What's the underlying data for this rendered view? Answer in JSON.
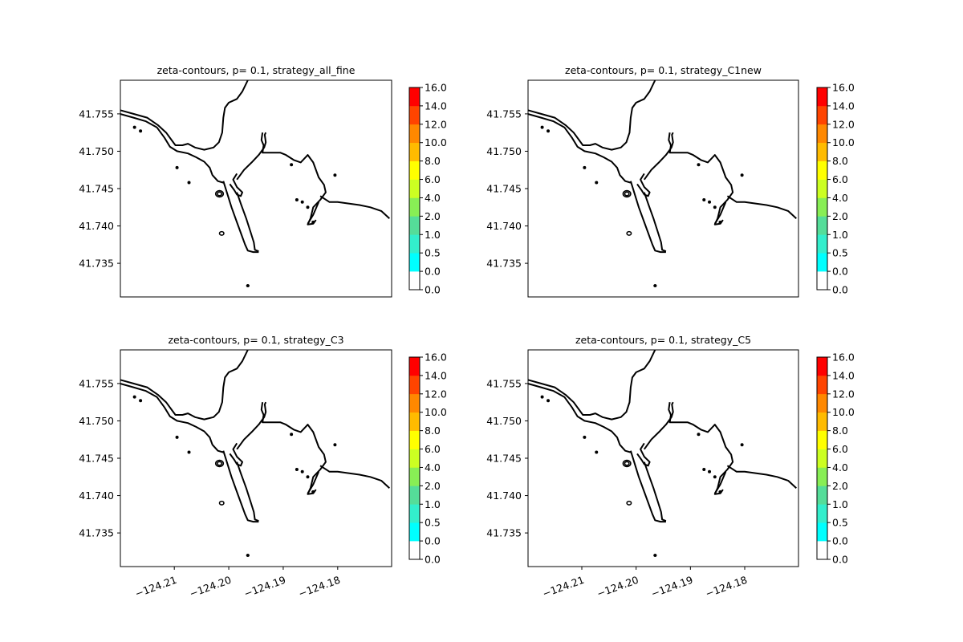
{
  "chart_data": {
    "type": "contour",
    "subplots": [
      {
        "title": "zeta-contours, p= 0.1, strategy_all_fine"
      },
      {
        "title": "zeta-contours, p= 0.1, strategy_C1new"
      },
      {
        "title": "zeta-contours, p= 0.1, strategy_C3"
      },
      {
        "title": "zeta-contours, p= 0.1, strategy_C5"
      }
    ],
    "xlim": [
      -124.2199,
      -124.1701
    ],
    "ylim": [
      41.7305,
      41.7595
    ],
    "x_ticks": [
      -124.21,
      -124.2,
      -124.19,
      -124.18
    ],
    "x_tick_labels": [
      "−124.21",
      "−124.20",
      "−124.19",
      "−124.18"
    ],
    "y_ticks": [
      41.735,
      41.74,
      41.745,
      41.75,
      41.755
    ],
    "y_tick_labels": [
      "41.735",
      "41.740",
      "41.745",
      "41.750",
      "41.755"
    ],
    "colorbar": {
      "levels": [
        "0.0",
        "0.0",
        "0.5",
        "1.0",
        "2.0",
        "4.0",
        "6.0",
        "8.0",
        "10.0",
        "12.0",
        "14.0",
        "16.0"
      ],
      "colors": [
        "#ffffff",
        "#00ffff",
        "#33eecc",
        "#55dd99",
        "#88ee55",
        "#ccff22",
        "#ffff00",
        "#ffbb00",
        "#ff8800",
        "#ff4400",
        "#ff0000"
      ]
    },
    "shoreline_color": "#000000",
    "shoreline": {
      "north_shore": [
        [
          -124.22,
          41.7555
        ],
        [
          -124.2175,
          41.755
        ],
        [
          -124.215,
          41.7545
        ],
        [
          -124.213,
          41.7535
        ],
        [
          -124.2115,
          41.7525
        ],
        [
          -124.2105,
          41.7515
        ],
        [
          -124.2098,
          41.7508
        ],
        [
          -124.2085,
          41.7508
        ],
        [
          -124.2075,
          41.751
        ],
        [
          -124.2062,
          41.7505
        ],
        [
          -124.2045,
          41.7502
        ],
        [
          -124.2028,
          41.7505
        ],
        [
          -124.2018,
          41.7512
        ],
        [
          -124.2012,
          41.7525
        ],
        [
          -124.201,
          41.7545
        ],
        [
          -124.2007,
          41.7558
        ],
        [
          -124.2,
          41.7565
        ],
        [
          -124.1985,
          41.757
        ],
        [
          -124.1975,
          41.758
        ],
        [
          -124.1965,
          41.7595
        ]
      ],
      "west_shore": [
        [
          -124.22,
          41.755
        ],
        [
          -124.2175,
          41.7545
        ],
        [
          -124.2152,
          41.754
        ],
        [
          -124.2132,
          41.7532
        ],
        [
          -124.2118,
          41.7518
        ],
        [
          -124.2108,
          41.7506
        ],
        [
          -124.2095,
          41.75
        ],
        [
          -124.2075,
          41.7497
        ],
        [
          -124.206,
          41.7492
        ],
        [
          -124.2045,
          41.7486
        ],
        [
          -124.2035,
          41.7478
        ],
        [
          -124.203,
          41.7468
        ],
        [
          -124.202,
          41.746
        ],
        [
          -124.201,
          41.7458
        ]
      ],
      "jetty_outer": [
        [
          -124.201,
          41.746
        ],
        [
          -124.1995,
          41.7425
        ],
        [
          -124.1985,
          41.7405
        ],
        [
          -124.1975,
          41.7385
        ],
        [
          -124.197,
          41.7375
        ],
        [
          -124.1965,
          41.7367
        ],
        [
          -124.1955,
          41.7365
        ],
        [
          -124.1945,
          41.7365
        ]
      ],
      "jetty_inner": [
        [
          -124.1985,
          41.7445
        ],
        [
          -124.1978,
          41.743
        ],
        [
          -124.1968,
          41.741
        ],
        [
          -124.196,
          41.7392
        ],
        [
          -124.1954,
          41.7378
        ],
        [
          -124.1952,
          41.7368
        ],
        [
          -124.1945,
          41.7366
        ]
      ],
      "jetty_tip": [
        [
          -124.1998,
          41.7456
        ],
        [
          -124.199,
          41.7448
        ],
        [
          -124.1985,
          41.7442
        ],
        [
          -124.1978,
          41.744
        ],
        [
          -124.1975,
          41.7445
        ],
        [
          -124.1985,
          41.7452
        ],
        [
          -124.1992,
          41.7462
        ],
        [
          -124.1985,
          41.747
        ]
      ],
      "channel_east": [
        [
          -124.1985,
          41.7462
        ],
        [
          -124.1972,
          41.7475
        ],
        [
          -124.1958,
          41.7485
        ],
        [
          -124.1945,
          41.7495
        ],
        [
          -124.1935,
          41.7505
        ],
        [
          -124.1932,
          41.7512
        ],
        [
          -124.1934,
          41.7522
        ],
        [
          -124.1932,
          41.7525
        ]
      ],
      "channel_east2": [
        [
          -124.1938,
          41.7525
        ],
        [
          -124.194,
          41.7515
        ],
        [
          -124.1936,
          41.7508
        ],
        [
          -124.1938,
          41.7498
        ],
        [
          -124.1925,
          41.7498
        ],
        [
          -124.1905,
          41.7498
        ],
        [
          -124.1895,
          41.7495
        ],
        [
          -124.188,
          41.7488
        ],
        [
          -124.1868,
          41.7485
        ],
        [
          -124.1855,
          41.7495
        ],
        [
          -124.1845,
          41.7485
        ],
        [
          -124.1835,
          41.7465
        ],
        [
          -124.1825,
          41.7455
        ],
        [
          -124.1822,
          41.7445
        ],
        [
          -124.1832,
          41.7435
        ],
        [
          -124.1845,
          41.7425
        ],
        [
          -124.185,
          41.741
        ],
        [
          -124.1855,
          41.7402
        ],
        [
          -124.1845,
          41.7403
        ],
        [
          -124.184,
          41.7408
        ]
      ],
      "east_coast": [
        [
          -124.1832,
          41.744
        ],
        [
          -124.1815,
          41.7432
        ],
        [
          -124.18,
          41.7432
        ],
        [
          -124.178,
          41.743
        ],
        [
          -124.176,
          41.7428
        ],
        [
          -124.174,
          41.7425
        ],
        [
          -124.172,
          41.742
        ],
        [
          -124.1705,
          41.741
        ]
      ],
      "spit_segment": [
        [
          -124.1855,
          41.7403
        ],
        [
          -124.1845,
          41.7415
        ],
        [
          -124.1835,
          41.7432
        ]
      ]
    },
    "islands": [
      {
        "lon": -124.2173,
        "lat": 41.7532,
        "r": 8e-05
      },
      {
        "lon": -124.2162,
        "lat": 41.7527,
        "r": 8e-05
      },
      {
        "lon": -124.2095,
        "lat": 41.7478,
        "r": 0.0001
      },
      {
        "lon": -124.2073,
        "lat": 41.7458,
        "r": 0.0001
      },
      {
        "lon": -124.2017,
        "lat": 41.7443,
        "r": 0.0007
      },
      {
        "lon": -124.2017,
        "lat": 41.7443,
        "r": 0.0004
      },
      {
        "lon": -124.2013,
        "lat": 41.739,
        "r": 0.0004
      },
      {
        "lon": -124.1965,
        "lat": 41.732,
        "r": 0.0002
      },
      {
        "lon": -124.1885,
        "lat": 41.7482,
        "r": 0.00012
      },
      {
        "lon": -124.1875,
        "lat": 41.7435,
        "r": 0.00012
      },
      {
        "lon": -124.1865,
        "lat": 41.7432,
        "r": 0.00012
      },
      {
        "lon": -124.1855,
        "lat": 41.7425,
        "r": 0.00012
      },
      {
        "lon": -124.1805,
        "lat": 41.7468,
        "r": 0.0001
      },
      {
        "lon": -124.1845,
        "lat": 41.7405,
        "r": 0.0002
      }
    ]
  }
}
